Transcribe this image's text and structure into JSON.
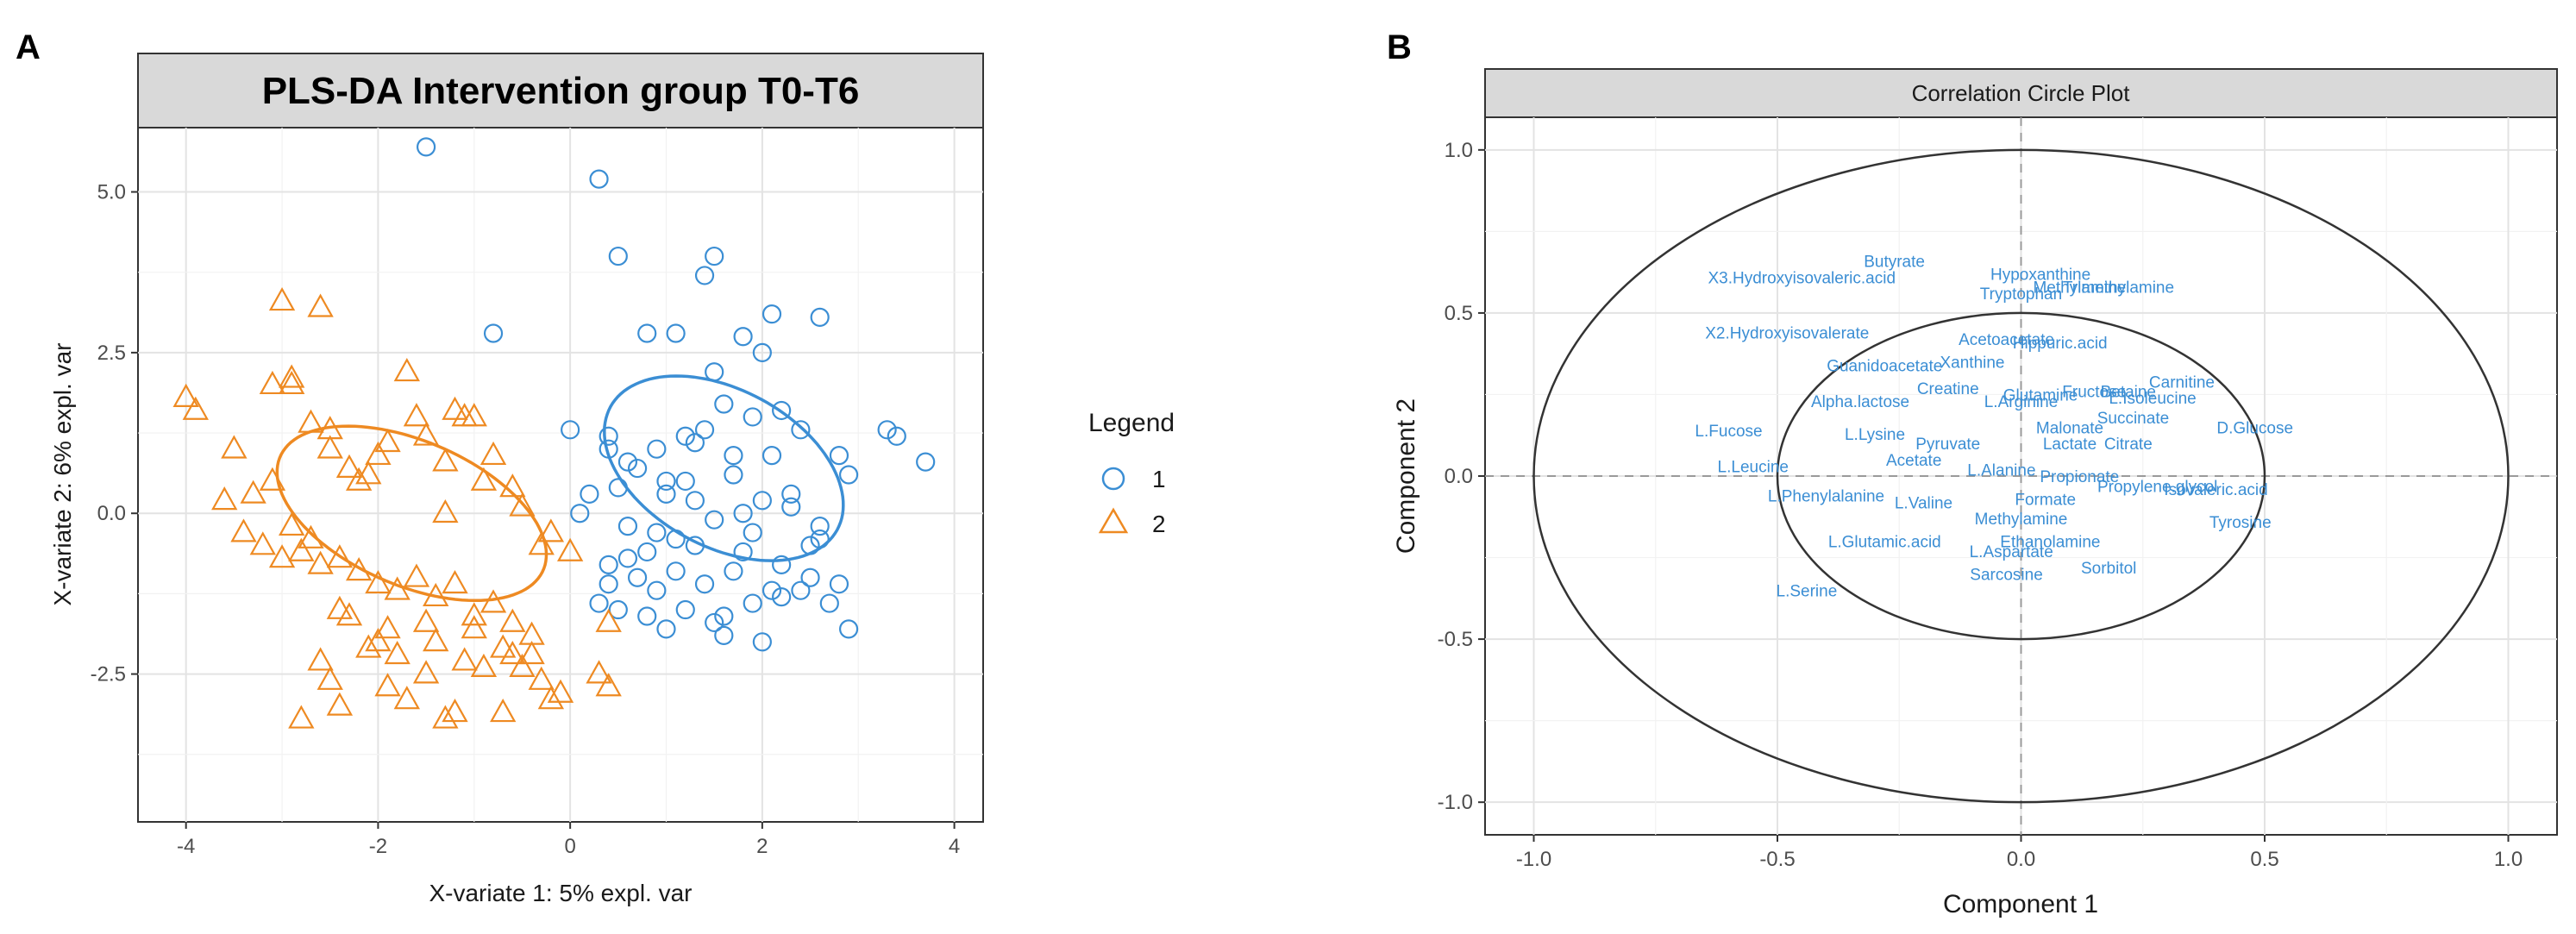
{
  "chart_data": [
    {
      "panel": "A",
      "type": "scatter",
      "title": "PLS-DA Intervention group T0-T6",
      "xlabel": "X-variate 1: 5% expl. var",
      "ylabel": "X-variate 2: 6% expl. var",
      "xlim": [
        -4.5,
        4.3
      ],
      "ylim": [
        -4.8,
        6.0
      ],
      "xticks": [
        -4,
        -2,
        0,
        2,
        4
      ],
      "xtick_labels": [
        "-4",
        "-2",
        "0",
        "2",
        "4"
      ],
      "yticks": [
        -2.5,
        0,
        2.5,
        5
      ],
      "ytick_labels": [
        "-2.5",
        "0.0",
        "2.5",
        "5.0"
      ],
      "grid": true,
      "legend": {
        "title": "Legend",
        "position": "right",
        "entries": [
          "1",
          "2"
        ]
      },
      "ellipses": [
        {
          "group": "1",
          "cx": 1.6,
          "cy": 0.7,
          "rx": 3.2,
          "ry": 2.05,
          "angle_deg": -55,
          "color": "#3b8ed4"
        },
        {
          "group": "2",
          "cx": -1.65,
          "cy": 0.0,
          "rx": 3.35,
          "ry": 2.0,
          "angle_deg": -43,
          "color": "#ee8a22"
        }
      ],
      "series": [
        {
          "name": "1",
          "marker": "circle",
          "color": "#3b8ed4",
          "x": [
            -1.5,
            0.3,
            0.5,
            1.5,
            1.4,
            1.1,
            0.8,
            2.1,
            2.6,
            1.8,
            3.4,
            3.7,
            3.3,
            2.9,
            2.2,
            1.6,
            1.9,
            1.2,
            2.4,
            0.0,
            0.4,
            0.6,
            1.7,
            2.8,
            0.7,
            0.2,
            0.5,
            1.0,
            1.3,
            2.0,
            2.3,
            2.6,
            0.9,
            1.5,
            1.8,
            2.5,
            0.6,
            1.1,
            0.4,
            0.7,
            1.4,
            1.7,
            2.1,
            2.8,
            0.3,
            0.9,
            1.2,
            1.9,
            2.2,
            0.5,
            1.5,
            2.7,
            1.6,
            0.8,
            1.0,
            2.0,
            2.4,
            1.3,
            1.8,
            2.3,
            0.6,
            1.2,
            1.7,
            2.1,
            0.9,
            1.4,
            2.6,
            -0.8,
            0.4,
            1.0,
            1.6,
            2.2,
            1.5,
            2.0,
            0.4,
            1.1,
            2.9,
            1.3,
            0.1,
            0.8,
            1.9,
            2.5
          ],
          "y": [
            5.7,
            5.2,
            4.0,
            4.0,
            3.7,
            2.8,
            2.8,
            3.1,
            3.05,
            2.75,
            1.2,
            0.8,
            1.3,
            0.6,
            1.6,
            1.7,
            1.5,
            1.2,
            1.3,
            1.3,
            1.0,
            0.8,
            0.9,
            0.9,
            0.7,
            0.3,
            0.4,
            0.3,
            0.2,
            0.2,
            0.3,
            -0.2,
            -0.3,
            -0.1,
            -0.6,
            -0.5,
            -0.7,
            -0.9,
            -0.8,
            -1.0,
            -1.1,
            -0.9,
            -1.2,
            -1.1,
            -1.4,
            -1.2,
            -1.5,
            -1.4,
            -1.3,
            -1.5,
            -1.7,
            -1.4,
            -1.9,
            -1.6,
            -1.8,
            -2.0,
            -1.2,
            -0.5,
            0.0,
            0.1,
            -0.2,
            0.5,
            0.6,
            0.9,
            1.0,
            1.3,
            -0.4,
            2.8,
            1.2,
            0.5,
            -1.6,
            -0.8,
            2.2,
            2.5,
            -1.1,
            -0.4,
            -1.8,
            1.1,
            0.0,
            -0.6,
            -0.3,
            -1.0
          ]
        },
        {
          "name": "2",
          "marker": "triangle",
          "color": "#ee8a22",
          "x": [
            -3.0,
            -2.6,
            -4.0,
            -3.9,
            -3.5,
            -3.3,
            -3.1,
            -3.1,
            -2.9,
            -2.9,
            -2.7,
            -2.5,
            -2.5,
            -2.3,
            -2.2,
            -2.1,
            -2.0,
            -1.9,
            -1.7,
            -1.6,
            -1.5,
            -1.3,
            -1.2,
            -1.1,
            -1.0,
            -0.9,
            -0.8,
            -0.6,
            -0.5,
            -0.3,
            -0.2,
            0.0,
            -3.6,
            -3.4,
            -3.2,
            -3.0,
            -2.8,
            -2.6,
            -2.4,
            -2.2,
            -2.0,
            -1.8,
            -1.6,
            -1.4,
            -1.2,
            -1.0,
            -0.8,
            -0.6,
            -0.4,
            -2.9,
            -2.7,
            -2.4,
            -2.3,
            -2.1,
            -1.9,
            -1.8,
            -1.5,
            -1.4,
            -1.1,
            -1.0,
            -0.7,
            -0.5,
            -0.3,
            0.3,
            0.4,
            -2.6,
            -2.5,
            -2.0,
            -1.9,
            -1.7,
            -1.5,
            -1.2,
            -0.9,
            -0.6,
            -0.2,
            -2.8,
            -2.4,
            -1.3,
            -0.7,
            -0.4,
            0.4,
            -0.1,
            -1.3
          ],
          "y": [
            3.3,
            3.2,
            1.8,
            1.6,
            1.0,
            0.3,
            0.5,
            2.0,
            2.0,
            2.1,
            1.4,
            1.3,
            1.0,
            0.7,
            0.5,
            0.6,
            0.9,
            1.1,
            2.2,
            1.5,
            1.2,
            0.8,
            1.6,
            1.5,
            1.5,
            0.5,
            0.9,
            0.4,
            0.1,
            -0.5,
            -0.3,
            -0.6,
            0.2,
            -0.3,
            -0.5,
            -0.7,
            -0.6,
            -0.8,
            -0.7,
            -0.9,
            -1.1,
            -1.2,
            -1.0,
            -1.3,
            -1.1,
            -1.6,
            -1.4,
            -1.7,
            -1.9,
            -0.2,
            -0.4,
            -1.5,
            -1.6,
            -2.1,
            -1.8,
            -2.2,
            -1.7,
            -2.0,
            -2.3,
            -1.8,
            -2.1,
            -2.4,
            -2.6,
            -2.5,
            -2.7,
            -2.3,
            -2.6,
            -2.0,
            -2.7,
            -2.9,
            -2.5,
            -3.1,
            -2.4,
            -2.2,
            -2.9,
            -3.2,
            -3.0,
            -3.2,
            -3.1,
            -2.2,
            -1.7,
            -2.8,
            0.0
          ]
        }
      ]
    },
    {
      "panel": "B",
      "type": "scatter",
      "title": "Correlation Circle Plot",
      "xlabel": "Component  1",
      "ylabel": "Component  2",
      "xlim": [
        -1.1,
        1.1
      ],
      "ylim": [
        -1.1,
        1.1
      ],
      "xticks": [
        -1.0,
        -0.5,
        0.0,
        0.5,
        1.0
      ],
      "xtick_labels": [
        "-1.0",
        "-0.5",
        "0.0",
        "0.5",
        "1.0"
      ],
      "yticks": [
        -1.0,
        -0.5,
        0.0,
        0.5,
        1.0
      ],
      "ytick_labels": [
        "-1.0",
        "-0.5",
        "0.0",
        "0.5",
        "1.0"
      ],
      "grid": true,
      "circles_radius": [
        1.0,
        0.5
      ],
      "reference_lines": {
        "x": 0,
        "y": 0,
        "style": "dashed"
      },
      "variables": [
        {
          "label": "X3.Hydroxyisovaleric.acid",
          "x": -0.45,
          "y": 0.61
        },
        {
          "label": "Butyrate",
          "x": -0.26,
          "y": 0.66
        },
        {
          "label": "Hypoxanthine",
          "x": 0.04,
          "y": 0.62
        },
        {
          "label": "Tryptophan",
          "x": 0.0,
          "y": 0.56
        },
        {
          "label": "Methylamine",
          "x": 0.12,
          "y": 0.58
        },
        {
          "label": "Trimethylamine",
          "x": 0.2,
          "y": 0.58
        },
        {
          "label": "X2.Hydroxyisovalerate",
          "x": -0.48,
          "y": 0.44
        },
        {
          "label": "Acetoacetate",
          "x": -0.03,
          "y": 0.42
        },
        {
          "label": "Hippuric.acid",
          "x": 0.08,
          "y": 0.41
        },
        {
          "label": "Guanidoacetate",
          "x": -0.28,
          "y": 0.34
        },
        {
          "label": "Xanthine",
          "x": -0.1,
          "y": 0.35
        },
        {
          "label": "Carnitine",
          "x": 0.33,
          "y": 0.29
        },
        {
          "label": "Creatine",
          "x": -0.15,
          "y": 0.27
        },
        {
          "label": "Betaine",
          "x": 0.22,
          "y": 0.26
        },
        {
          "label": "L.Arginine",
          "x": 0.0,
          "y": 0.23
        },
        {
          "label": "Glutamine",
          "x": 0.04,
          "y": 0.25
        },
        {
          "label": "Fructose",
          "x": 0.15,
          "y": 0.26
        },
        {
          "label": "L.Isoleucine",
          "x": 0.27,
          "y": 0.24
        },
        {
          "label": "Alpha.lactose",
          "x": -0.33,
          "y": 0.23
        },
        {
          "label": "L.Fucose",
          "x": -0.6,
          "y": 0.14
        },
        {
          "label": "L.Lysine",
          "x": -0.3,
          "y": 0.13
        },
        {
          "label": "D.Glucose",
          "x": 0.48,
          "y": 0.15
        },
        {
          "label": "Succinate",
          "x": 0.23,
          "y": 0.18
        },
        {
          "label": "Malonate",
          "x": 0.1,
          "y": 0.15
        },
        {
          "label": "Pyruvate",
          "x": -0.15,
          "y": 0.1
        },
        {
          "label": "Lactate",
          "x": 0.1,
          "y": 0.1
        },
        {
          "label": "Citrate",
          "x": 0.22,
          "y": 0.1
        },
        {
          "label": "L.Leucine",
          "x": -0.55,
          "y": 0.03
        },
        {
          "label": "Acetate",
          "x": -0.22,
          "y": 0.05
        },
        {
          "label": "L.Alanine",
          "x": -0.04,
          "y": 0.02
        },
        {
          "label": "Propionate",
          "x": 0.12,
          "y": 0.0
        },
        {
          "label": "Propylene.glycol",
          "x": 0.28,
          "y": -0.03
        },
        {
          "label": "Isovaleric.acid",
          "x": 0.4,
          "y": -0.04
        },
        {
          "label": "L.Phenylalanine",
          "x": -0.4,
          "y": -0.06
        },
        {
          "label": "L.Valine",
          "x": -0.2,
          "y": -0.08
        },
        {
          "label": "Formate",
          "x": 0.05,
          "y": -0.07
        },
        {
          "label": "Methylamine",
          "x": 0.0,
          "y": -0.13
        },
        {
          "label": "Tyrosine",
          "x": 0.45,
          "y": -0.14
        },
        {
          "label": "L.Glutamic.acid",
          "x": -0.28,
          "y": -0.2
        },
        {
          "label": "Ethanolamine",
          "x": 0.06,
          "y": -0.2
        },
        {
          "label": "L.Aspartate",
          "x": -0.02,
          "y": -0.23
        },
        {
          "label": "Sorbitol",
          "x": 0.18,
          "y": -0.28
        },
        {
          "label": "Sarcosine",
          "x": -0.03,
          "y": -0.3
        },
        {
          "label": "L.Serine",
          "x": -0.44,
          "y": -0.35
        }
      ]
    }
  ]
}
